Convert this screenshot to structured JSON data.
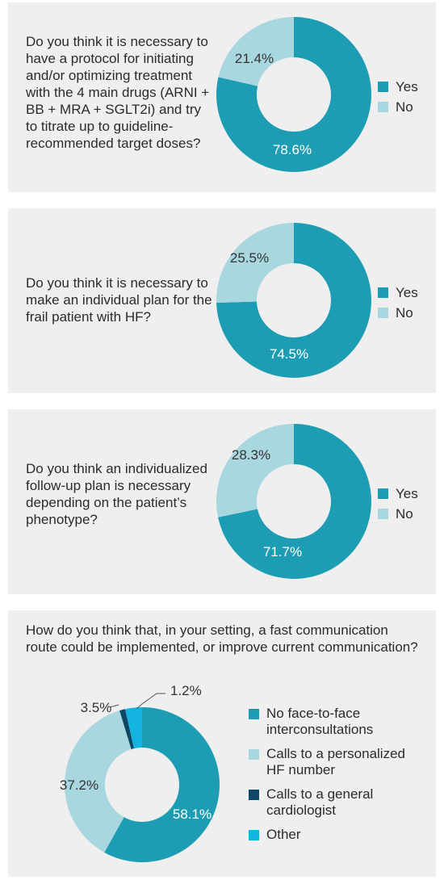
{
  "colors": {
    "yes": "#1d9db3",
    "no": "#a9d7df",
    "dark": "#0e4766",
    "other": "#13b4df",
    "panel": "#efefef"
  },
  "chart_data": [
    {
      "type": "pie",
      "question": "Do you think it is necessary to have a protocol for initiating and/or optimizing treatment with the 4 main drugs (ARNI + BB + MRA + SGLT2i) and try to titrate up to guideline-recommended target doses?",
      "categories": [
        "Yes",
        "No"
      ],
      "values": [
        78.6,
        21.4
      ],
      "labels": [
        "78.6%",
        "21.4%"
      ]
    },
    {
      "type": "pie",
      "question": "Do you think it is necessary to make an individual plan for the frail patient with HF?",
      "categories": [
        "Yes",
        "No"
      ],
      "values": [
        74.5,
        25.5
      ],
      "labels": [
        "74.5%",
        "25.5%"
      ]
    },
    {
      "type": "pie",
      "question": "Do you think an individualized follow-up plan is necessary depending on the patient’s phenotype?",
      "categories": [
        "Yes",
        "No"
      ],
      "values": [
        71.7,
        28.3
      ],
      "labels": [
        "71.7%",
        "28.3%"
      ]
    },
    {
      "type": "pie",
      "question": "How do you think that, in your setting, a fast communication route could be implemented, or improve current communication?",
      "categories": [
        "No face-to-face interconsultations",
        "Calls to a personalized HF number",
        "Calls to a general cardiologist",
        "Other"
      ],
      "values": [
        58.1,
        37.2,
        1.2,
        3.5
      ],
      "labels": [
        "58.1%",
        "37.2%",
        "1.2%",
        "3.5%"
      ]
    }
  ]
}
